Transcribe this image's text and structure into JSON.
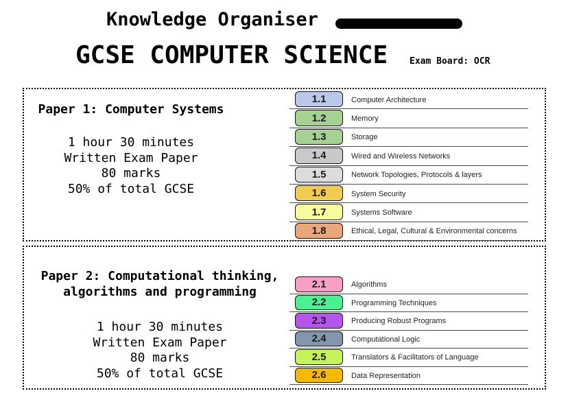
{
  "header": {
    "kicker": "Knowledge Organiser",
    "title": "GCSE COMPUTER SCIENCE",
    "exam_board": "Exam Board: OCR",
    "bar_color": "#000000"
  },
  "papers": [
    {
      "title": "Paper 1: Computer Systems",
      "title_line2": "",
      "details": [
        "1 hour 30 minutes",
        "Written Exam Paper",
        "80 marks",
        "50% of total GCSE"
      ],
      "topics": [
        {
          "code": "1.1",
          "label": "Computer Architecture",
          "color": "#b9c8e8"
        },
        {
          "code": "1.2",
          "label": "Memory",
          "color": "#a5d192"
        },
        {
          "code": "1.3",
          "label": "Storage",
          "color": "#a5d192"
        },
        {
          "code": "1.4",
          "label": "Wired and Wireless Networks",
          "color": "#c9c9c9"
        },
        {
          "code": "1.5",
          "label": "Network Topologies, Protocols & layers",
          "color": "#dcdcdc"
        },
        {
          "code": "1.6",
          "label": "System Security",
          "color": "#f2cb52"
        },
        {
          "code": "1.7",
          "label": "Systems Software",
          "color": "#fafa9e"
        },
        {
          "code": "1.8",
          "label": "Ethical, Legal, Cultural & Environmental concerns",
          "color": "#e9a77c"
        }
      ]
    },
    {
      "title": "Paper 2: Computational thinking,",
      "title_line2": "algorithms and programming",
      "details": [
        "1 hour 30 minutes",
        "Written Exam Paper",
        "80 marks",
        "50% of total GCSE"
      ],
      "topics": [
        {
          "code": "2.1",
          "label": "Algorithms",
          "color": "#f89fc4"
        },
        {
          "code": "2.2",
          "label": "Programming Techniques",
          "color": "#4bf092"
        },
        {
          "code": "2.3",
          "label": "Producing Robust Programs",
          "color": "#b654ee"
        },
        {
          "code": "2.4",
          "label": "Computational Logic",
          "color": "#8496ad"
        },
        {
          "code": "2.5",
          "label": "Translators & Facilitators of Language",
          "color": "#c4f35c"
        },
        {
          "code": "2.6",
          "label": "Data Representation",
          "color": "#f7b800"
        }
      ]
    }
  ]
}
